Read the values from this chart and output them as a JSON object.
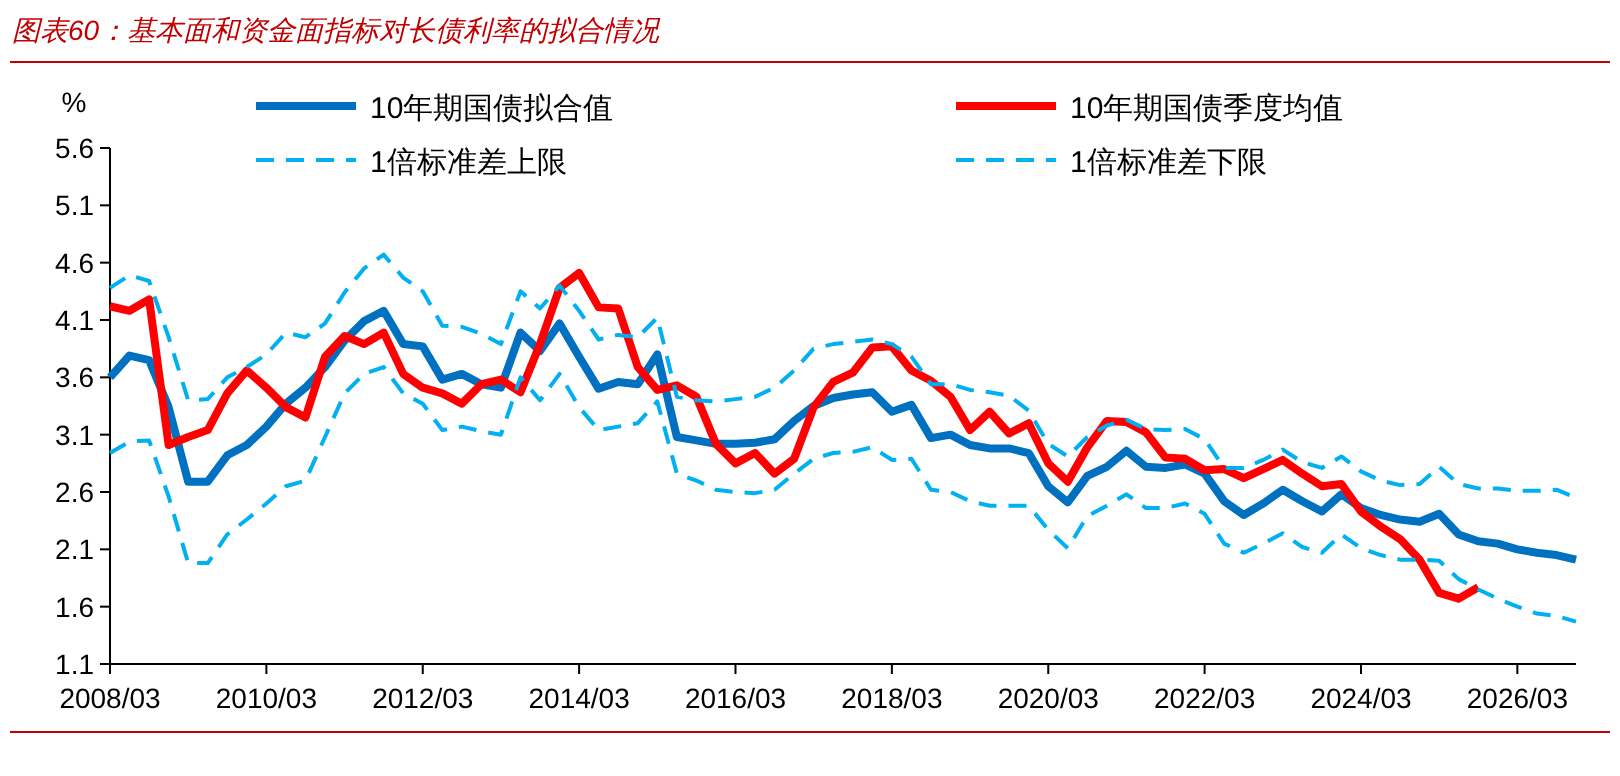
{
  "chart_data": {
    "type": "line",
    "title": "图表60：基本面和资金面指标对长债利率的拟合情况",
    "ylabel": "%",
    "x": [
      "2008-03",
      "2008-06",
      "2008-09",
      "2008-12",
      "2009-03",
      "2009-06",
      "2009-09",
      "2009-12",
      "2010-03",
      "2010-06",
      "2010-09",
      "2010-12",
      "2011-03",
      "2011-06",
      "2011-09",
      "2011-12",
      "2012-03",
      "2012-06",
      "2012-09",
      "2012-12",
      "2013-03",
      "2013-06",
      "2013-09",
      "2013-12",
      "2014-03",
      "2014-06",
      "2014-09",
      "2014-12",
      "2015-03",
      "2015-06",
      "2015-09",
      "2015-12",
      "2016-03",
      "2016-06",
      "2016-09",
      "2016-12",
      "2017-03",
      "2017-06",
      "2017-09",
      "2017-12",
      "2018-03",
      "2018-06",
      "2018-09",
      "2018-12",
      "2019-03",
      "2019-06",
      "2019-09",
      "2019-12",
      "2020-03",
      "2020-06",
      "2020-09",
      "2020-12",
      "2021-03",
      "2021-06",
      "2021-09",
      "2021-12",
      "2022-03",
      "2022-06",
      "2022-09",
      "2022-12",
      "2023-03",
      "2023-06",
      "2023-09",
      "2023-12",
      "2024-03",
      "2024-06",
      "2024-09",
      "2024-12",
      "2025-03",
      "2025-06",
      "2025-09",
      "2025-12",
      "2026-03",
      "2026-06",
      "2026-09",
      "2026-12"
    ],
    "series": [
      {
        "name": "10年期国债拟合值",
        "color": "#0070c0",
        "line_style": "solid",
        "values": [
          3.6,
          3.79,
          3.75,
          3.34,
          2.69,
          2.69,
          2.92,
          3.01,
          3.17,
          3.37,
          3.51,
          3.69,
          3.92,
          4.09,
          4.18,
          3.89,
          3.87,
          3.58,
          3.63,
          3.54,
          3.51,
          3.99,
          3.83,
          4.07,
          3.78,
          3.5,
          3.56,
          3.54,
          3.8,
          3.08,
          3.05,
          3.02,
          3.02,
          3.03,
          3.06,
          3.22,
          3.35,
          3.42,
          3.45,
          3.47,
          3.3,
          3.36,
          3.07,
          3.1,
          3.01,
          2.98,
          2.98,
          2.94,
          2.65,
          2.51,
          2.74,
          2.82,
          2.96,
          2.82,
          2.81,
          2.84,
          2.76,
          2.52,
          2.4,
          2.5,
          2.62,
          2.52,
          2.43,
          2.58,
          2.46,
          2.4,
          2.36,
          2.34,
          2.41,
          2.23,
          2.17,
          2.15,
          2.1,
          2.07,
          2.05,
          2.01
        ]
      },
      {
        "name": "10年期国债季度均值",
        "color": "#ff0000",
        "line_style": "solid",
        "values": [
          4.22,
          4.18,
          4.28,
          3.01,
          3.08,
          3.14,
          3.46,
          3.66,
          3.51,
          3.34,
          3.25,
          3.78,
          3.96,
          3.89,
          3.99,
          3.63,
          3.51,
          3.46,
          3.37,
          3.54,
          3.58,
          3.47,
          3.89,
          4.38,
          4.51,
          4.21,
          4.2,
          3.69,
          3.49,
          3.53,
          3.43,
          3.02,
          2.85,
          2.94,
          2.76,
          2.89,
          3.34,
          3.56,
          3.64,
          3.86,
          3.87,
          3.66,
          3.57,
          3.43,
          3.14,
          3.3,
          3.11,
          3.2,
          2.85,
          2.69,
          2.99,
          3.22,
          3.21,
          3.12,
          2.9,
          2.89,
          2.79,
          2.8,
          2.72,
          2.8,
          2.88,
          2.76,
          2.65,
          2.67,
          2.43,
          2.3,
          2.19,
          2.01,
          1.72,
          1.67,
          1.77,
          null,
          null,
          null,
          null,
          null
        ]
      },
      {
        "name": "1倍标准差上限",
        "color": "#00b0f0",
        "line_style": "dashed",
        "values": [
          4.38,
          4.49,
          4.44,
          3.95,
          3.4,
          3.41,
          3.6,
          3.69,
          3.8,
          3.99,
          3.95,
          4.07,
          4.34,
          4.55,
          4.67,
          4.47,
          4.35,
          4.05,
          4.04,
          3.98,
          3.89,
          4.35,
          4.2,
          4.4,
          4.18,
          3.93,
          3.97,
          3.95,
          4.12,
          3.43,
          3.4,
          3.39,
          3.41,
          3.43,
          3.51,
          3.66,
          3.85,
          3.89,
          3.91,
          3.93,
          3.89,
          3.78,
          3.54,
          3.54,
          3.49,
          3.47,
          3.44,
          3.31,
          3.02,
          2.91,
          3.08,
          3.18,
          3.23,
          3.15,
          3.14,
          3.15,
          3.06,
          2.81,
          2.81,
          2.88,
          2.97,
          2.86,
          2.81,
          2.91,
          2.78,
          2.7,
          2.66,
          2.67,
          2.82,
          2.67,
          2.63,
          2.63,
          2.61,
          2.61,
          2.62,
          2.55
        ]
      },
      {
        "name": "1倍标准差下限",
        "color": "#00b0f0",
        "line_style": "dashed",
        "values": [
          2.94,
          3.04,
          3.05,
          2.56,
          1.98,
          1.98,
          2.23,
          2.36,
          2.5,
          2.65,
          2.7,
          3.08,
          3.46,
          3.63,
          3.69,
          3.46,
          3.37,
          3.14,
          3.17,
          3.13,
          3.1,
          3.6,
          3.4,
          3.63,
          3.34,
          3.14,
          3.17,
          3.2,
          3.39,
          2.76,
          2.7,
          2.62,
          2.6,
          2.59,
          2.62,
          2.76,
          2.89,
          2.94,
          2.95,
          2.99,
          2.88,
          2.89,
          2.62,
          2.6,
          2.52,
          2.48,
          2.48,
          2.48,
          2.27,
          2.11,
          2.39,
          2.48,
          2.58,
          2.46,
          2.46,
          2.5,
          2.41,
          2.15,
          2.07,
          2.15,
          2.24,
          2.12,
          2.07,
          2.23,
          2.11,
          2.05,
          2.01,
          2.01,
          2.0,
          1.84,
          1.75,
          1.67,
          1.6,
          1.54,
          1.52,
          1.47
        ]
      }
    ],
    "xlim": [
      "2008-03",
      "2026-12"
    ],
    "xticks": [
      {
        "value": "2008-03",
        "label": "2008/03"
      },
      {
        "value": "2010-03",
        "label": "2010/03"
      },
      {
        "value": "2012-03",
        "label": "2012/03"
      },
      {
        "value": "2014-03",
        "label": "2014/03"
      },
      {
        "value": "2016-03",
        "label": "2016/03"
      },
      {
        "value": "2018-03",
        "label": "2018/03"
      },
      {
        "value": "2020-03",
        "label": "2020/03"
      },
      {
        "value": "2022-03",
        "label": "2022/03"
      },
      {
        "value": "2024-03",
        "label": "2024/03"
      },
      {
        "value": "2026-03",
        "label": "2026/03"
      }
    ],
    "ylim": [
      1.1,
      5.6
    ],
    "yticks": [
      1.1,
      1.6,
      2.1,
      2.6,
      3.1,
      3.6,
      4.1,
      4.6,
      5.1,
      5.6
    ],
    "legend": "top",
    "grid": false
  }
}
